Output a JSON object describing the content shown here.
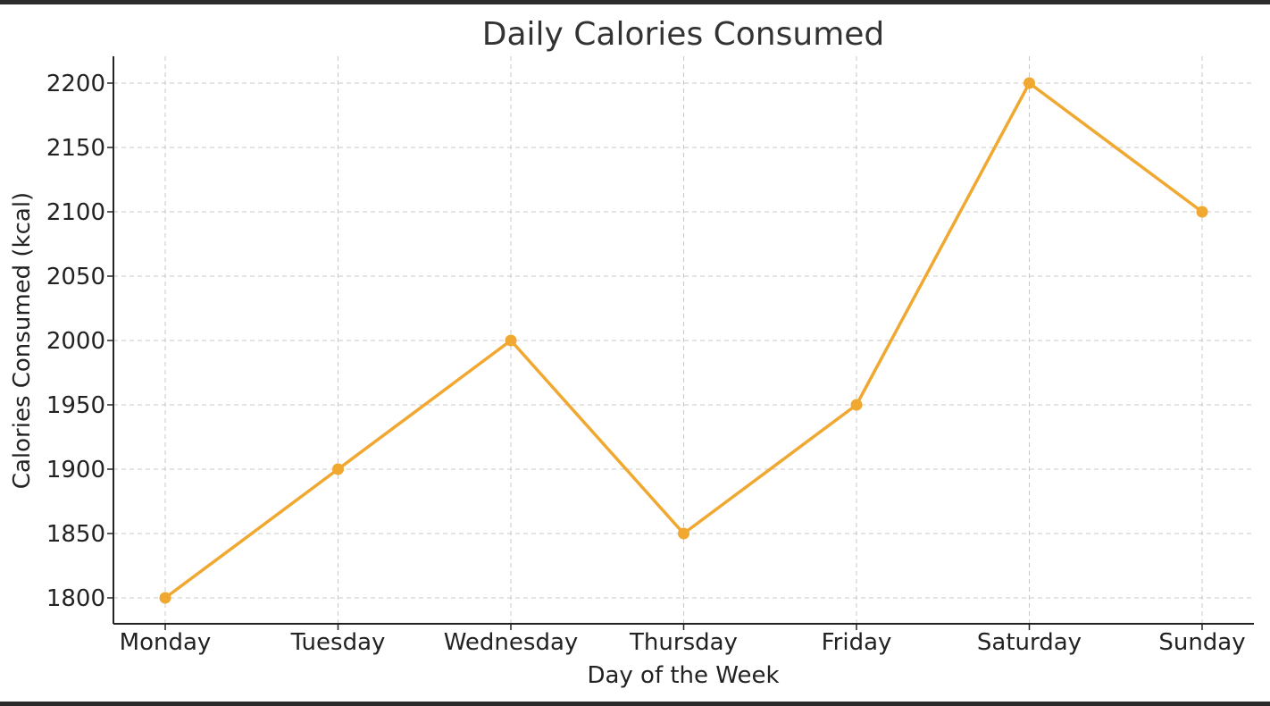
{
  "chart_data": {
    "type": "line",
    "title": "Daily Calories Consumed",
    "xlabel": "Day of the Week",
    "ylabel": "Calories Consumed (kcal)",
    "categories": [
      "Monday",
      "Tuesday",
      "Wednesday",
      "Thursday",
      "Friday",
      "Saturday",
      "Sunday"
    ],
    "series": [
      {
        "values": [
          1800,
          1900,
          2000,
          1850,
          1950,
          2200,
          2100
        ],
        "color": "#F0A830",
        "marker": "circle"
      }
    ],
    "ylim": [
      1780,
      2220
    ],
    "yticks": [
      1800,
      1850,
      1900,
      1950,
      2000,
      2050,
      2100,
      2150,
      2200
    ],
    "grid": true,
    "legend": "none"
  }
}
